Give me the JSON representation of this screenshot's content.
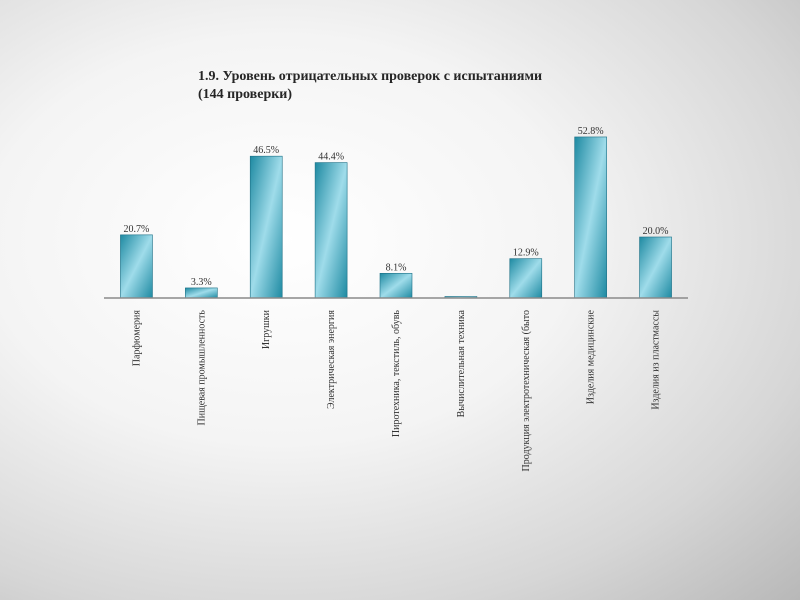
{
  "chart_data": {
    "type": "bar",
    "title": "1.9. Уровень отрицательных проверок с испытаниями",
    "subtitle": "(144 проверки)",
    "categories": [
      "Парфюмерия",
      "Пищевая промышленность",
      "Игрушки",
      "Электрическая энергия",
      "Пиротехника, текстиль, обувь",
      "Вычислительная техника",
      "Продукция электротехническая (быто",
      "Изделия медицинские",
      "Изделия из пластмассы"
    ],
    "values": [
      20.7,
      3.3,
      46.5,
      44.4,
      8.1,
      0.0,
      12.9,
      52.8,
      20.0
    ],
    "data_labels": [
      "20.7%",
      "3.3%",
      "46.5%",
      "44.4%",
      "8.1%",
      "",
      "12.9%",
      "52.8%",
      "20.0%"
    ],
    "ylim": [
      0,
      55
    ],
    "grid": false,
    "legend": "none",
    "colors": {
      "bar_dark": "#1e8aa2",
      "bar_light": "#9fdcea",
      "bar_edge": "#1b6f85",
      "axis": "#8a8a8a"
    }
  }
}
